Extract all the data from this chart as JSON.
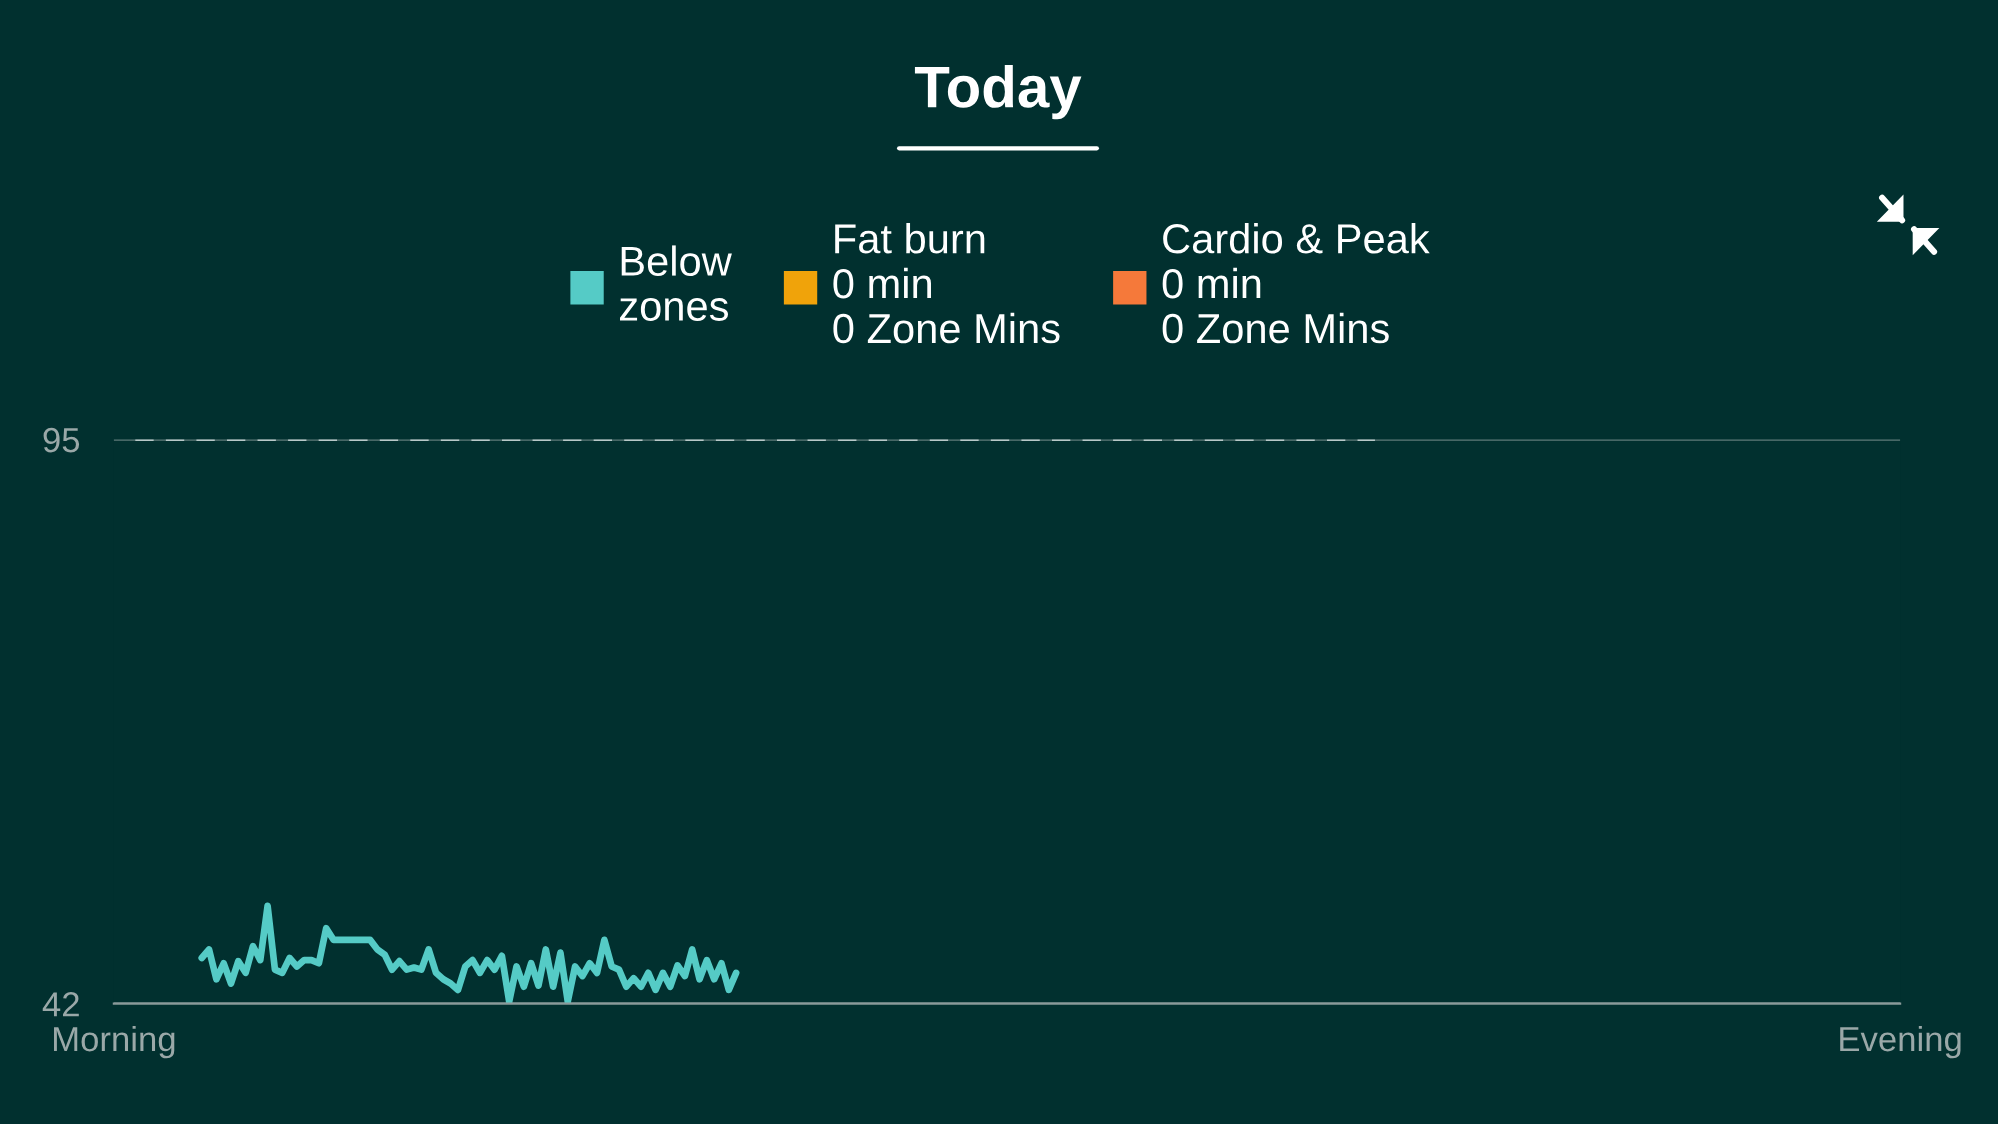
{
  "chart_data": {
    "type": "line",
    "title": "Today",
    "categories": [
      "Morning",
      null,
      null,
      null,
      null,
      null,
      null,
      null,
      null,
      null,
      null,
      null,
      null,
      null,
      null,
      null,
      null,
      null,
      null,
      null,
      null,
      null,
      null,
      null,
      null,
      null,
      null,
      null,
      null,
      null,
      null,
      null,
      null,
      null,
      null,
      null,
      null,
      null,
      null,
      null,
      null,
      null,
      null,
      null,
      null,
      null,
      null,
      null,
      null,
      null,
      null,
      null,
      null,
      null,
      null,
      null,
      null,
      null,
      null,
      null,
      null,
      null,
      null,
      null,
      null,
      null,
      null,
      null,
      null,
      null,
      null,
      null,
      null,
      null,
      null,
      null,
      null,
      null,
      null,
      null,
      null,
      null,
      null,
      null,
      null,
      null,
      null,
      null,
      null,
      null,
      null,
      null,
      null,
      null,
      null,
      null,
      null,
      null,
      null,
      null,
      null,
      null,
      null,
      null,
      null,
      null,
      null,
      null,
      null,
      null,
      null,
      null,
      null,
      null,
      null,
      null,
      null,
      null,
      null,
      null,
      null,
      null,
      null,
      null,
      null,
      null,
      null,
      null,
      null,
      null,
      null,
      null,
      null,
      null,
      null,
      null,
      null,
      null,
      null,
      null,
      null,
      null,
      null,
      null,
      null,
      null,
      null,
      null,
      null,
      null,
      null,
      null,
      null,
      null,
      null,
      null,
      null,
      null,
      null,
      null,
      null,
      null,
      null,
      null,
      null,
      null,
      null,
      null,
      null,
      null,
      null,
      null,
      null,
      null,
      null,
      null,
      null,
      null,
      null,
      null,
      null,
      null,
      null,
      null,
      null,
      null,
      null,
      null,
      null,
      null,
      null,
      null,
      null,
      null,
      null,
      null,
      null,
      null,
      null,
      null,
      null,
      null,
      null,
      null,
      null,
      null,
      null,
      null,
      null,
      null,
      null,
      null,
      null,
      null,
      null,
      null,
      null,
      null,
      null,
      null,
      null,
      null,
      null,
      null,
      null,
      null,
      null,
      null,
      null,
      null,
      null,
      null,
      null,
      null,
      null,
      null,
      null,
      null,
      null,
      null,
      null,
      null,
      null,
      null,
      "Evening"
    ],
    "series": [
      {
        "name": "Below zones",
        "color": "#55cbc6",
        "values": [
          null,
          null,
          null,
          null,
          null,
          null,
          null,
          null,
          null,
          null,
          null,
          null,
          46.3,
          47.1,
          44.3,
          45.8,
          43.9,
          46.0,
          44.9,
          47.4,
          46.1,
          51.2,
          45.2,
          44.9,
          46.3,
          45.5,
          46.1,
          46.1,
          45.8,
          49.1,
          48.0,
          48.0,
          48.0,
          48.0,
          48.0,
          48.0,
          47.1,
          46.6,
          45.2,
          46.0,
          45.2,
          45.4,
          45.2,
          47.1,
          44.9,
          44.3,
          43.9,
          43.3,
          45.5,
          46.1,
          44.9,
          46.1,
          45.2,
          46.5,
          42.2,
          45.5,
          43.6,
          45.8,
          43.7,
          47.1,
          43.6,
          46.8,
          42.2,
          45.5,
          44.6,
          45.8,
          44.9,
          48.0,
          45.5,
          45.2,
          43.6,
          44.4,
          43.6,
          44.9,
          43.3,
          44.9,
          43.6,
          45.6,
          44.6,
          47.1,
          44.3,
          46.1,
          44.3,
          45.8,
          43.3,
          44.9,
          null,
          null,
          null,
          null,
          null,
          null,
          null,
          null,
          null,
          null,
          null,
          null,
          null,
          null,
          null,
          null,
          null,
          null,
          null,
          null,
          null,
          null,
          null,
          null,
          null,
          null,
          null,
          null,
          null,
          null,
          null,
          null,
          null,
          null,
          null,
          null,
          null,
          null,
          null,
          null,
          null,
          null,
          null,
          null,
          null,
          null,
          null,
          null,
          null,
          null,
          null,
          null,
          null,
          null,
          null,
          null,
          null,
          null,
          null,
          null,
          null,
          null,
          null,
          null,
          null,
          null,
          null,
          null,
          null,
          null,
          null,
          null,
          null,
          null,
          null,
          null,
          null,
          null,
          null,
          null,
          null,
          null,
          null,
          null,
          null,
          null,
          null,
          null,
          null,
          null,
          null,
          null,
          null,
          null,
          null,
          null,
          null,
          null,
          null,
          null,
          null,
          null,
          null,
          null,
          null,
          null,
          null,
          null,
          null,
          null,
          null,
          null,
          null,
          null,
          null,
          null,
          null,
          null,
          null,
          null,
          null,
          null,
          null,
          null,
          null,
          null,
          null,
          null,
          null,
          null,
          null,
          null,
          null,
          null,
          null,
          null,
          null,
          null,
          null,
          null,
          null,
          null,
          null,
          null,
          null,
          null,
          null,
          null,
          null,
          null,
          null,
          null,
          null,
          null,
          null,
          null,
          null,
          null,
          null
        ]
      },
      {
        "name": "Fat burn\n0 min\n0 Zone Mins",
        "color": "#f0a30a",
        "values": [
          null,
          null,
          null,
          null,
          null,
          null,
          null,
          null,
          null,
          null,
          null,
          null,
          null,
          null,
          null,
          null,
          null,
          null,
          null,
          null,
          null,
          null,
          null,
          null,
          null,
          null,
          null,
          null,
          null,
          null,
          null,
          null,
          null,
          null,
          null,
          null,
          null,
          null,
          null,
          null,
          null,
          null,
          null,
          null,
          null,
          null,
          null,
          null,
          null,
          null,
          null,
          null,
          null,
          null,
          null,
          null,
          null,
          null,
          null,
          null,
          null,
          null,
          null,
          null,
          null,
          null,
          null,
          null,
          null,
          null,
          null,
          null,
          null,
          null,
          null,
          null,
          null,
          null,
          null,
          null,
          null,
          null,
          null,
          null,
          null,
          null,
          null,
          null,
          null,
          null,
          null,
          null,
          null,
          null,
          null,
          null,
          null,
          null,
          null,
          null,
          null,
          null,
          null,
          null,
          null,
          null,
          null,
          null,
          null,
          null,
          null,
          null,
          null,
          null,
          null,
          null,
          null,
          null,
          null,
          null,
          null,
          null,
          null,
          null,
          null,
          null,
          null,
          null,
          null,
          null,
          null,
          null,
          null,
          null,
          null,
          null,
          null,
          null,
          null,
          null,
          null,
          null,
          null,
          null,
          null,
          null,
          null,
          null,
          null,
          null,
          null,
          null,
          null,
          null,
          null,
          null,
          null,
          null,
          null,
          null,
          null,
          null,
          null,
          null,
          null,
          null,
          null,
          null,
          null,
          null,
          null,
          null,
          null,
          null,
          null,
          null,
          null,
          null,
          null,
          null,
          null,
          null,
          null,
          null,
          null,
          null,
          null,
          null,
          null,
          null,
          null,
          null,
          null,
          null,
          null,
          null,
          null,
          null,
          null,
          null,
          null,
          null,
          null,
          null,
          null,
          null,
          null,
          null,
          null,
          null,
          null,
          null,
          null,
          null,
          null,
          null,
          null,
          null,
          null,
          null,
          null,
          null,
          null,
          null,
          null,
          null,
          null,
          null,
          null,
          null,
          null,
          null,
          null,
          null,
          null,
          null,
          null,
          null,
          null,
          null,
          null,
          null,
          null,
          null,
          null
        ]
      },
      {
        "name": "Cardio & Peak\n0 min\n0 Zone Mins",
        "color": "#f5793a",
        "values": [
          null,
          null,
          null,
          null,
          null,
          null,
          null,
          null,
          null,
          null,
          null,
          null,
          null,
          null,
          null,
          null,
          null,
          null,
          null,
          null,
          null,
          null,
          null,
          null,
          null,
          null,
          null,
          null,
          null,
          null,
          null,
          null,
          null,
          null,
          null,
          null,
          null,
          null,
          null,
          null,
          null,
          null,
          null,
          null,
          null,
          null,
          null,
          null,
          null,
          null,
          null,
          null,
          null,
          null,
          null,
          null,
          null,
          null,
          null,
          null,
          null,
          null,
          null,
          null,
          null,
          null,
          null,
          null,
          null,
          null,
          null,
          null,
          null,
          null,
          null,
          null,
          null,
          null,
          null,
          null,
          null,
          null,
          null,
          null,
          null,
          null,
          null,
          null,
          null,
          null,
          null,
          null,
          null,
          null,
          null,
          null,
          null,
          null,
          null,
          null,
          null,
          null,
          null,
          null,
          null,
          null,
          null,
          null,
          null,
          null,
          null,
          null,
          null,
          null,
          null,
          null,
          null,
          null,
          null,
          null,
          null,
          null,
          null,
          null,
          null,
          null,
          null,
          null,
          null,
          null,
          null,
          null,
          null,
          null,
          null,
          null,
          null,
          null,
          null,
          null,
          null,
          null,
          null,
          null,
          null,
          null,
          null,
          null,
          null,
          null,
          null,
          null,
          null,
          null,
          null,
          null,
          null,
          null,
          null,
          null,
          null,
          null,
          null,
          null,
          null,
          null,
          null,
          null,
          null,
          null,
          null,
          null,
          null,
          null,
          null,
          null,
          null,
          null,
          null,
          null,
          null,
          null,
          null,
          null,
          null,
          null,
          null,
          null,
          null,
          null,
          null,
          null,
          null,
          null,
          null,
          null,
          null,
          null,
          null,
          null,
          null,
          null,
          null,
          null,
          null,
          null,
          null,
          null,
          null,
          null,
          null,
          null,
          null,
          null,
          null,
          null,
          null,
          null,
          null,
          null,
          null,
          null,
          null,
          null,
          null,
          null,
          null,
          null,
          null,
          null,
          null,
          null,
          null,
          null,
          null,
          null,
          null,
          null,
          null,
          null,
          null,
          null,
          null,
          null,
          null
        ]
      }
    ],
    "ylim": [
      42,
      95
    ],
    "yticks": [
      42,
      95
    ],
    "ref_lines": [
      {
        "axis": "y",
        "value": 95,
        "line_style": "dashed",
        "color": "#b8c8c8"
      }
    ],
    "grid": "y",
    "legend": "top",
    "marker": "none",
    "line_style": "solid"
  }
}
